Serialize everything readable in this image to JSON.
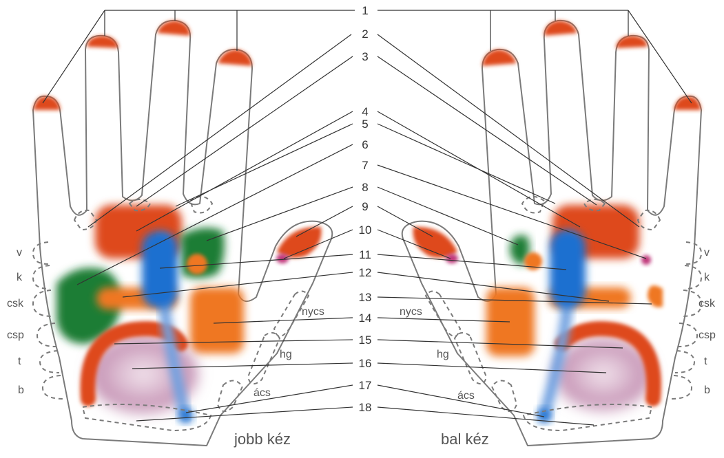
{
  "colors": {
    "red": "#de4a1e",
    "orange": "#ef7722",
    "green": "#1f7d35",
    "blue": "#1f6fd0",
    "blue_light": "#6fa0e0",
    "purple": "#b77aa8",
    "magenta": "#c0397a",
    "outline": "#7a7a7a"
  },
  "numbers": [
    "1",
    "2",
    "3",
    "4",
    "5",
    "6",
    "7",
    "8",
    "9",
    "10",
    "11",
    "12",
    "13",
    "14",
    "15",
    "16",
    "17",
    "18"
  ],
  "side_labels": [
    "v",
    "k",
    "csk",
    "csp",
    "t",
    "b"
  ],
  "zone_labels": {
    "nycs": "nycs",
    "hg": "hg",
    "acs": "ács"
  },
  "captions": {
    "right_hand": "jobb kéz",
    "left_hand": "bal kéz"
  }
}
